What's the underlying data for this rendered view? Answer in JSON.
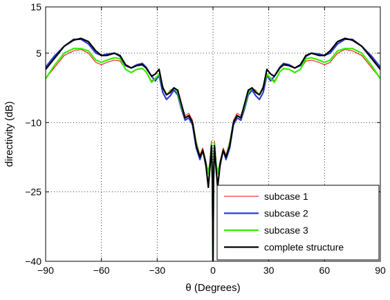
{
  "chart_data": {
    "type": "line",
    "title": "",
    "xlabel": "θ (Degrees)",
    "ylabel": "directivity (dB)",
    "xlim": [
      -90,
      90
    ],
    "ylim": [
      -40,
      15
    ],
    "xticks": [
      -90,
      -60,
      -30,
      0,
      30,
      60,
      90
    ],
    "yticks": [
      -40,
      -25,
      -10,
      5,
      15
    ],
    "xtick_labels": [
      "−90",
      "−60",
      "−30",
      "0",
      "30",
      "60",
      "90"
    ],
    "ytick_labels": [
      "−40",
      "−25",
      "−10",
      "5",
      "15"
    ],
    "grid": true,
    "legend_position": "bottom-right",
    "colors": {
      "subcase_1": "#ff0000",
      "subcase_2": "#2a3bd6",
      "subcase_3": "#33ee00",
      "complete": "#000000"
    },
    "series": [
      {
        "name": "subcase 1",
        "color": "#ff0000",
        "x": [
          -90,
          -85,
          -80,
          -75,
          -71,
          -67,
          -63,
          -60,
          -57,
          -53,
          -50,
          -47,
          -44,
          -41,
          -38,
          -36,
          -33,
          -31,
          -29,
          -27,
          -25,
          -23,
          -21,
          -19,
          -17,
          -15,
          -13,
          -11,
          -9,
          -7,
          -5.5,
          -4,
          -2.5,
          -1.5,
          -0.8,
          -0.3,
          0,
          0.3,
          0.8,
          1.5,
          2.5,
          4,
          5.5,
          7,
          9,
          11,
          13,
          15,
          17,
          19,
          21,
          23,
          25,
          27,
          29,
          31,
          33,
          36,
          38,
          41,
          44,
          47,
          50,
          53,
          57,
          60,
          63,
          67,
          71,
          75,
          80,
          85,
          90
        ],
        "y": [
          -0.5,
          2,
          4.5,
          5.5,
          5.8,
          5,
          3,
          2.5,
          3,
          3.5,
          3.3,
          1.5,
          0.8,
          1.5,
          1.8,
          1,
          -1,
          -0.3,
          0.5,
          -2,
          -4,
          -3,
          -2.5,
          -3.5,
          -6,
          -8.5,
          -8,
          -9.5,
          -14,
          -17,
          -15.5,
          -18,
          -20.5,
          -18,
          -14,
          -22,
          -40,
          -22,
          -14,
          -18,
          -20.5,
          -18,
          -15.5,
          -17,
          -14,
          -9.5,
          -8,
          -8.5,
          -6,
          -3.5,
          -2.5,
          -3,
          -4,
          -2,
          0.5,
          -0.3,
          -1,
          1,
          1.8,
          1.5,
          0.8,
          1.5,
          3.3,
          3.5,
          3,
          2.5,
          3,
          5,
          5.8,
          5.5,
          4.5,
          2,
          -0.5
        ]
      },
      {
        "name": "subcase 2",
        "color": "#2a3bd6",
        "x": [
          -90,
          -85,
          -80,
          -75,
          -71,
          -67,
          -63,
          -60,
          -57,
          -53,
          -50,
          -47,
          -44,
          -41,
          -38,
          -36,
          -33,
          -31,
          -29,
          -27,
          -25,
          -23,
          -21,
          -19,
          -17,
          -15,
          -13,
          -11,
          -9,
          -7,
          -5.5,
          -4,
          -2.5,
          -1.5,
          -0.8,
          -0.3,
          0,
          0.3,
          0.8,
          1.5,
          2.5,
          4,
          5.5,
          7,
          9,
          11,
          13,
          15,
          17,
          19,
          21,
          23,
          25,
          27,
          29,
          31,
          33,
          36,
          38,
          41,
          44,
          47,
          50,
          53,
          57,
          60,
          63,
          67,
          71,
          75,
          80,
          85,
          90
        ],
        "y": [
          2,
          4.5,
          6.5,
          8,
          8,
          7,
          5,
          4.5,
          4.8,
          5,
          4.3,
          2.3,
          1.8,
          2.5,
          2.8,
          2,
          0,
          -1,
          0.2,
          -3.5,
          -5,
          -4.2,
          -3,
          -4,
          -7,
          -9.5,
          -9,
          -10.5,
          -15.5,
          -18,
          -16,
          -19,
          -21,
          -18.5,
          -14.5,
          -22.5,
          -40,
          -22.5,
          -14.5,
          -18.5,
          -21,
          -19,
          -16,
          -18,
          -15.5,
          -10.5,
          -9,
          -9.5,
          -7,
          -4,
          -3,
          -4.2,
          -5,
          -3.5,
          0.2,
          -1,
          0,
          2,
          2.8,
          2.5,
          1.8,
          2.3,
          4.3,
          5,
          4.8,
          4.5,
          5,
          7,
          8,
          8,
          6.5,
          4.5,
          2
        ]
      },
      {
        "name": "subcase 3",
        "color": "#33ee00",
        "x": [
          -90,
          -85,
          -80,
          -75,
          -71,
          -67,
          -63,
          -60,
          -57,
          -53,
          -50,
          -47,
          -44,
          -41,
          -38,
          -36,
          -33,
          -31,
          -29,
          -27,
          -25,
          -23,
          -21,
          -19,
          -17,
          -15,
          -13,
          -11,
          -9,
          -7,
          -5.5,
          -4,
          -2.5,
          -1.5,
          -0.8,
          -0.3,
          0,
          0.3,
          0.8,
          1.5,
          2.5,
          4,
          5.5,
          7,
          9,
          11,
          13,
          15,
          17,
          19,
          21,
          23,
          25,
          27,
          29,
          31,
          33,
          36,
          38,
          41,
          44,
          47,
          50,
          53,
          57,
          60,
          63,
          67,
          71,
          75,
          80,
          85,
          90
        ],
        "y": [
          -0.5,
          2.5,
          5,
          6,
          6,
          5.5,
          3.5,
          3,
          3.5,
          4,
          3.8,
          1.5,
          0.8,
          1.5,
          1.7,
          1,
          -1.3,
          -0.5,
          0.5,
          -2.3,
          -4,
          -3.3,
          -2.5,
          -3.5,
          -6.5,
          -9,
          -8.5,
          -10,
          -14.5,
          -17.5,
          -16,
          -18.5,
          -21,
          -18.5,
          -14.5,
          -22.5,
          -40,
          -22.5,
          -14.5,
          -18.5,
          -21,
          -18.5,
          -16,
          -17.5,
          -14.5,
          -10,
          -8.5,
          -9,
          -6.5,
          -3.5,
          -2.5,
          -3.3,
          -4,
          -2.3,
          0.5,
          -0.5,
          -1.3,
          1,
          1.7,
          1.5,
          0.8,
          1.5,
          3.8,
          4,
          3.5,
          3,
          3.5,
          5.5,
          6,
          6,
          5,
          2.5,
          -0.5
        ]
      },
      {
        "name": "complete structure",
        "color": "#000000",
        "x": [
          -90,
          -85,
          -80,
          -75,
          -71,
          -67,
          -63,
          -60,
          -57,
          -53,
          -50,
          -47,
          -44,
          -41,
          -38,
          -36,
          -33,
          -31,
          -29,
          -27,
          -25,
          -23,
          -21,
          -19,
          -17,
          -15,
          -13,
          -11,
          -9,
          -7,
          -5.5,
          -4,
          -2.5,
          -1.5,
          -0.8,
          -0.3,
          0,
          0.3,
          0.8,
          1.5,
          2.5,
          4,
          5.5,
          7,
          9,
          11,
          13,
          15,
          17,
          19,
          21,
          23,
          25,
          27,
          29,
          31,
          33,
          36,
          38,
          41,
          44,
          47,
          50,
          53,
          57,
          60,
          63,
          67,
          71,
          75,
          80,
          85,
          90
        ],
        "y": [
          1.5,
          4,
          6.5,
          7.8,
          8.2,
          7.5,
          5.5,
          4.5,
          4.5,
          5,
          4.5,
          2.5,
          1.8,
          2.3,
          2.5,
          1.8,
          0,
          0.5,
          1.5,
          -2.5,
          -4,
          -3.5,
          -2.5,
          -3,
          -6,
          -9,
          -8.5,
          -10,
          -15,
          -17.5,
          -16,
          -18.5,
          -24,
          -19,
          -15,
          -23,
          -40,
          -23,
          -15,
          -19,
          -24,
          -18.5,
          -16,
          -17.5,
          -15,
          -10,
          -8.5,
          -9,
          -6,
          -3,
          -2.5,
          -3.5,
          -4,
          -2.5,
          1.5,
          0.5,
          0,
          1.8,
          2.5,
          2.3,
          1.8,
          2.5,
          4.5,
          5,
          4.5,
          4.5,
          5.5,
          7.5,
          8.2,
          7.8,
          6.5,
          4,
          1.5
        ]
      }
    ]
  }
}
